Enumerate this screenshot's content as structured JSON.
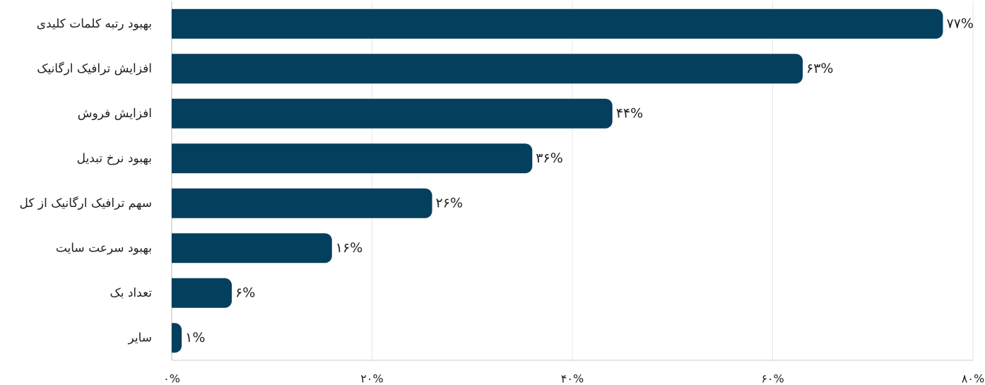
{
  "chart_data": {
    "type": "bar",
    "orientation": "horizontal",
    "categories": [
      "بهبود رتبه کلمات کلیدی",
      "افزایش ترافیک ارگانیک",
      "افزایش فروش",
      "بهبود نرخ تبدیل",
      "سهم ترافیک ارگانیک از کل",
      "بهبود سرعت سایت",
      "تعداد بک",
      "سایر"
    ],
    "values": [
      77,
      63,
      44,
      36,
      26,
      16,
      6,
      1
    ],
    "value_labels": [
      "۷۷%",
      "۶۳%",
      "۴۴%",
      "۳۶%",
      "۲۶%",
      "۱۶%",
      "۶%",
      "۱%"
    ],
    "color": "#053f5e",
    "xlim": [
      0,
      80
    ],
    "xticks": [
      {
        "value": 0,
        "label": "۰%"
      },
      {
        "value": 20,
        "label": "۲۰%"
      },
      {
        "value": 40,
        "label": "۴۰%"
      },
      {
        "value": 60,
        "label": "۶۰%"
      },
      {
        "value": 80,
        "label": "۸۰%"
      }
    ],
    "grid": true
  }
}
